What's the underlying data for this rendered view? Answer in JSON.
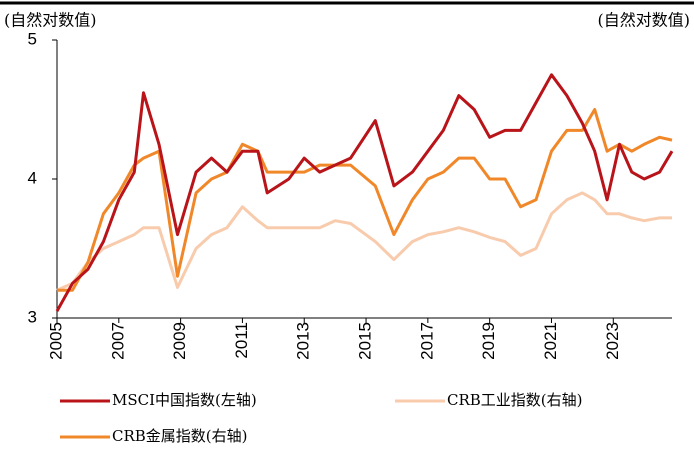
{
  "chart_data": {
    "type": "line",
    "ylabel": "(自然对数值)",
    "y2label": "(自然对数值)",
    "x": [
      2005,
      2005.5,
      2006,
      2006.5,
      2007,
      2007.5,
      2007.8,
      2008.3,
      2008.9,
      2009.5,
      2010,
      2010.5,
      2011,
      2011.5,
      2011.8,
      2012.5,
      2013,
      2013.5,
      2014,
      2014.5,
      2015.3,
      2015.9,
      2016.5,
      2017,
      2017.5,
      2018,
      2018.5,
      2019,
      2019.5,
      2020,
      2020.5,
      2021,
      2021.5,
      2022,
      2022.4,
      2022.8,
      2023.2,
      2023.6,
      2024,
      2024.5,
      2024.9
    ],
    "series": [
      {
        "name": "MSCI中国指数(左轴)",
        "color": "#b81419",
        "values": [
          3.05,
          3.25,
          3.35,
          3.55,
          3.85,
          4.05,
          4.62,
          4.25,
          3.6,
          4.05,
          4.15,
          4.05,
          4.2,
          4.2,
          3.9,
          4.0,
          4.15,
          4.05,
          4.1,
          4.15,
          4.42,
          3.95,
          4.05,
          4.2,
          4.35,
          4.6,
          4.5,
          4.3,
          4.35,
          4.35,
          4.55,
          4.75,
          4.6,
          4.4,
          4.2,
          3.85,
          4.25,
          4.05,
          4.0,
          4.05,
          4.2
        ]
      },
      {
        "name": "CRB工业指数(右轴)",
        "color": "#f8cbad",
        "values": [
          3.2,
          3.25,
          3.4,
          3.5,
          3.55,
          3.6,
          3.65,
          3.65,
          3.22,
          3.5,
          3.6,
          3.65,
          3.8,
          3.7,
          3.65,
          3.65,
          3.65,
          3.65,
          3.7,
          3.68,
          3.55,
          3.42,
          3.55,
          3.6,
          3.62,
          3.65,
          3.62,
          3.58,
          3.55,
          3.45,
          3.5,
          3.75,
          3.85,
          3.9,
          3.85,
          3.75,
          3.75,
          3.72,
          3.7,
          3.72,
          3.72
        ]
      },
      {
        "name": "CRB金属指数(右轴)",
        "color": "#f0882a",
        "values": [
          3.2,
          3.2,
          3.4,
          3.75,
          3.9,
          4.1,
          4.15,
          4.2,
          3.3,
          3.9,
          4.0,
          4.05,
          4.25,
          4.2,
          4.05,
          4.05,
          4.05,
          4.1,
          4.1,
          4.1,
          3.95,
          3.6,
          3.85,
          4.0,
          4.05,
          4.15,
          4.15,
          4.0,
          4.0,
          3.8,
          3.85,
          4.2,
          4.35,
          4.35,
          4.5,
          4.2,
          4.25,
          4.2,
          4.25,
          4.3,
          4.28
        ]
      }
    ],
    "xlim": [
      2005,
      2024.9
    ],
    "xticks": [
      2005,
      2007,
      2009,
      2011,
      2013,
      2015,
      2017,
      2019,
      2021,
      2023
    ],
    "ylim": [
      3,
      5
    ],
    "yticks": [
      3,
      4,
      5
    ]
  }
}
